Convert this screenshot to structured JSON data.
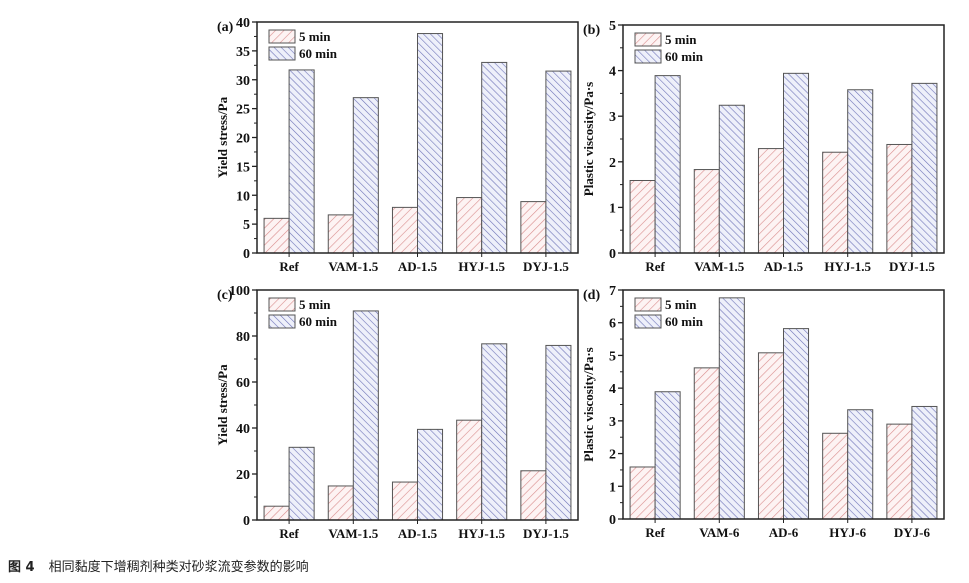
{
  "caption": {
    "figure_no": "图 4",
    "text": "相同黏度下增稠剂种类对砂浆流变参数的影响"
  },
  "colors": {
    "five_min": "#d98c8c",
    "sixty_min": "#6f74b8",
    "axis": "#222222"
  },
  "chart_data": [
    {
      "panel": "(a)",
      "type": "bar",
      "categories": [
        "Ref",
        "VAM-1.5",
        "AD-1.5",
        "HYJ-1.5",
        "DYJ-1.5"
      ],
      "series": [
        {
          "name": "5 min",
          "values": [
            6.0,
            6.6,
            7.9,
            9.6,
            8.9
          ]
        },
        {
          "name": "60 min",
          "values": [
            31.7,
            26.9,
            38.0,
            33.0,
            31.5
          ]
        }
      ],
      "ylabel": "Yield stress/Pa",
      "ylim": [
        0,
        40
      ],
      "yticks": [
        "0",
        "5",
        "10",
        "15",
        "20",
        "25",
        "30",
        "35",
        "40"
      ],
      "legend": "top-left",
      "grid": false
    },
    {
      "panel": "(b)",
      "type": "bar",
      "categories": [
        "Ref",
        "VAM-1.5",
        "AD-1.5",
        "HYJ-1.5",
        "DYJ-1.5"
      ],
      "series": [
        {
          "name": "5 min",
          "values": [
            1.59,
            1.83,
            2.29,
            2.21,
            2.38
          ]
        },
        {
          "name": "60 min",
          "values": [
            3.89,
            3.24,
            3.94,
            3.58,
            3.72
          ]
        }
      ],
      "ylabel": "Plastic viscosity/Pa·s",
      "ylim": [
        0,
        5
      ],
      "yticks": [
        "0",
        "1",
        "2",
        "3",
        "4",
        "5"
      ],
      "legend": "top-left",
      "grid": false
    },
    {
      "panel": "(c)",
      "type": "bar",
      "categories": [
        "Ref",
        "VAM-1.5",
        "AD-1.5",
        "HYJ-1.5",
        "DYJ-1.5"
      ],
      "series": [
        {
          "name": "5 min",
          "values": [
            6.0,
            14.8,
            16.5,
            43.4,
            21.4
          ]
        },
        {
          "name": "60 min",
          "values": [
            31.6,
            90.9,
            39.4,
            76.6,
            75.9
          ]
        }
      ],
      "ylabel": "Yield stress/Pa",
      "ylim": [
        0,
        100
      ],
      "yticks": [
        "0",
        "20",
        "40",
        "60",
        "80",
        "100"
      ],
      "legend": "top-left",
      "grid": false
    },
    {
      "panel": "(d)",
      "type": "bar",
      "categories": [
        "Ref",
        "VAM-6",
        "AD-6",
        "HYJ-6",
        "DYJ-6"
      ],
      "series": [
        {
          "name": "5 min",
          "values": [
            1.59,
            4.62,
            5.08,
            2.62,
            2.9
          ]
        },
        {
          "name": "60 min",
          "values": [
            3.89,
            6.76,
            5.82,
            3.34,
            3.44
          ]
        }
      ],
      "ylabel": "Plastic viscosity/Pa·s",
      "ylim": [
        0,
        7
      ],
      "yticks": [
        "0",
        "1",
        "2",
        "3",
        "4",
        "5",
        "6",
        "7"
      ],
      "legend": "top-left",
      "grid": false
    }
  ]
}
